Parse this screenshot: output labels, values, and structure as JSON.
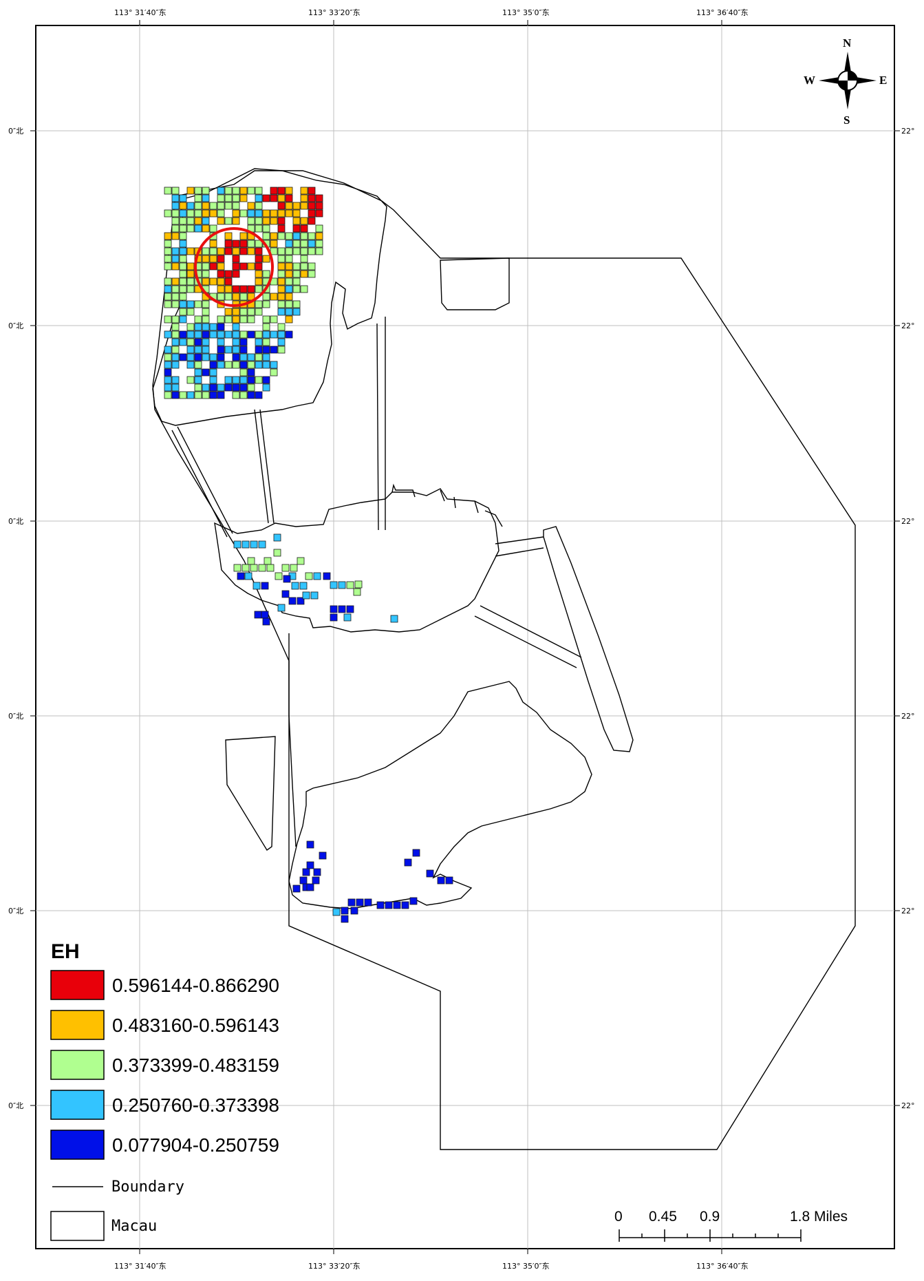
{
  "frame": {
    "lon_labels": [
      "113° 31′40″东",
      "113° 33′20″东",
      "113° 35′0″东",
      "113° 36′40″东"
    ],
    "lat_labels_left": [
      "0″北",
      "0″北",
      "0″北",
      "0″北",
      "0″北",
      "0″北"
    ],
    "lat_labels_right": [
      "22°",
      "22°",
      "22°",
      "22°",
      "22°",
      "22°"
    ]
  },
  "compass": {
    "north": "N",
    "south": "S",
    "east": "E",
    "west": "W",
    "icon": "north-arrow-icon"
  },
  "legend": {
    "title": "EH",
    "classes": [
      {
        "label": "0.596144-0.866290",
        "color": "#e8000a"
      },
      {
        "label": "0.483160-0.596143",
        "color": "#ffc000"
      },
      {
        "label": "0.373399-0.483159",
        "color": "#b0ff90"
      },
      {
        "label": "0.250760-0.373398",
        "color": "#33c4ff"
      },
      {
        "label": "0.077904-0.250759",
        "color": "#0010e8"
      }
    ],
    "boundary_label": "Boundary",
    "macau_label": "Macau"
  },
  "scalebar": {
    "ticks": [
      "0",
      "0.45",
      "0.9",
      "1.8 Miles"
    ]
  },
  "highlight": {
    "color": "#e81010"
  }
}
